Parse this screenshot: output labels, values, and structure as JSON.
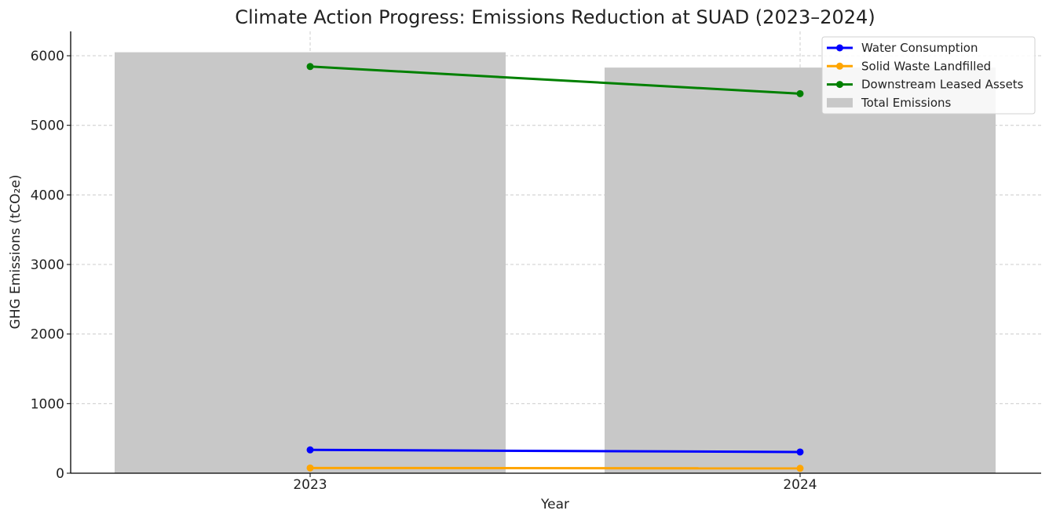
{
  "chart_data": {
    "type": "bar",
    "title": "Climate Action Progress: Emissions Reduction at SUAD (2023–2024)",
    "xlabel": "Year",
    "ylabel": "GHG Emissions (tCO₂e)",
    "categories": [
      "2023",
      "2024"
    ],
    "ylim": [
      0,
      6350
    ],
    "yticks": [
      0,
      1000,
      2000,
      3000,
      4000,
      5000,
      6000
    ],
    "grid": true,
    "legend_position": "top-right",
    "bars": {
      "name": "Total Emissions",
      "values": [
        6050,
        5830
      ],
      "color": "#c8c8c8"
    },
    "series": [
      {
        "name": "Water Consumption",
        "values": [
          335,
          305
        ],
        "color": "#0000ff"
      },
      {
        "name": "Solid Waste Landfilled",
        "values": [
          75,
          70
        ],
        "color": "#ffa500"
      },
      {
        "name": "Downstream Leased Assets",
        "values": [
          5845,
          5455
        ],
        "color": "#008000"
      }
    ]
  }
}
